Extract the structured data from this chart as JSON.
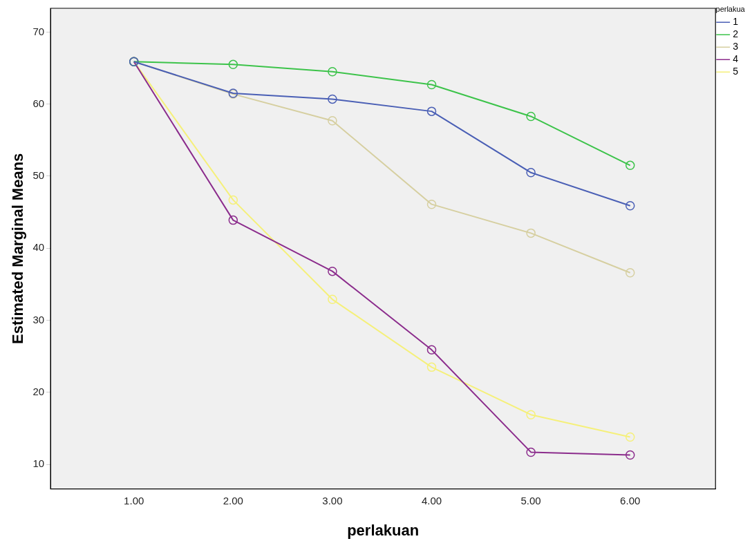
{
  "chart_data": {
    "type": "line",
    "xlabel": "perlakuan",
    "ylabel": "Estimated Marginal Means",
    "legend_title": "perlakua",
    "legend": "top right",
    "marker": "circle",
    "line_style": "solid",
    "grid": false,
    "x": [
      1,
      2,
      3,
      4,
      5,
      6
    ],
    "xlim": [
      0.16,
      6.86
    ],
    "xticks": [
      {
        "value": 1,
        "label": "1.00"
      },
      {
        "value": 2,
        "label": "2.00"
      },
      {
        "value": 3,
        "label": "3.00"
      },
      {
        "value": 4,
        "label": "4.00"
      },
      {
        "value": 5,
        "label": "5.00"
      },
      {
        "value": 6,
        "label": "6.00"
      }
    ],
    "ylim": [
      6.6,
      73.3
    ],
    "yticks": [
      10,
      20,
      30,
      40,
      50,
      60,
      70
    ],
    "series": [
      {
        "name": "1",
        "color": "#4a5fb5",
        "values": [
          65.9,
          61.5,
          60.7,
          59.0,
          50.5,
          45.9
        ]
      },
      {
        "name": "2",
        "color": "#3cc34a",
        "values": [
          65.9,
          65.5,
          64.5,
          62.7,
          58.3,
          51.5
        ]
      },
      {
        "name": "3",
        "color": "#d6cfa0",
        "values": [
          65.9,
          61.4,
          57.7,
          46.1,
          42.1,
          36.6
        ]
      },
      {
        "name": "4",
        "color": "#8b2c8c",
        "values": [
          65.9,
          43.9,
          36.8,
          25.9,
          11.7,
          11.3
        ]
      },
      {
        "name": "5",
        "color": "#f5f07a",
        "values": [
          65.9,
          46.7,
          32.9,
          23.5,
          16.9,
          13.8
        ]
      }
    ]
  }
}
